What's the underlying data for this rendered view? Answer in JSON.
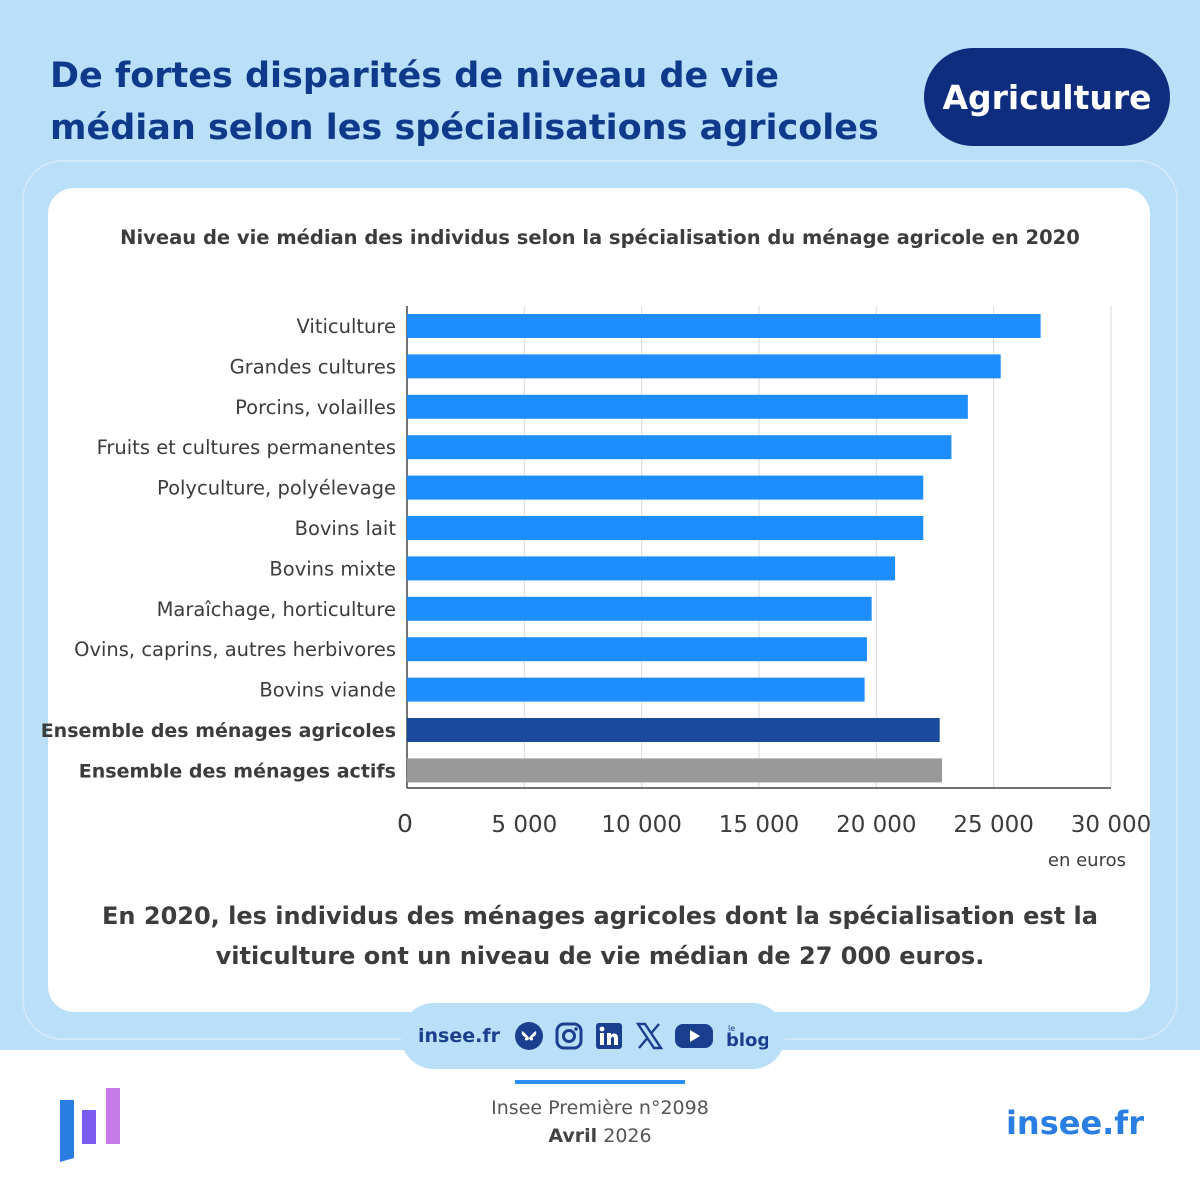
{
  "header": {
    "title": "De fortes disparités de niveau de vie médian selon les spécialisations agricoles",
    "tag": "Agriculture"
  },
  "chart_data": {
    "type": "bar",
    "orientation": "horizontal",
    "title": "Niveau de vie médian des individus selon la spécialisation du ménage agricole en 2020",
    "categories": [
      "Viticulture",
      "Grandes cultures",
      "Porcins, volailles",
      "Fruits et cultures permanentes",
      "Polyculture, polyélevage",
      "Bovins lait",
      "Bovins mixte",
      "Maraîchage, horticulture",
      "Ovins, caprins, autres herbivores",
      "Bovins viande",
      "Ensemble des ménages agricoles",
      "Ensemble des ménages actifs"
    ],
    "values": [
      27000,
      25300,
      23900,
      23200,
      22000,
      22000,
      20800,
      19800,
      19600,
      19500,
      22700,
      22800
    ],
    "bold_categories": [
      "Ensemble des ménages agricoles",
      "Ensemble des ménages actifs"
    ],
    "colors": {
      "default": "#1e8eff",
      "Ensemble des ménages agricoles": "#1a4a9c",
      "Ensemble des ménages actifs": "#999999"
    },
    "xlim": [
      0,
      30000
    ],
    "xticks": [
      0,
      5000,
      10000,
      15000,
      20000,
      25000,
      30000
    ],
    "xtick_labels": [
      "0",
      "5 000",
      "10 000",
      "15 000",
      "20 000",
      "25 000",
      "30 000"
    ],
    "unit": "en euros",
    "grid": "vertical"
  },
  "caption": "En 2020, les individus des ménages agricoles dont la spécialisation est la viticulture ont un niveau de vie médian de 27 000 euros.",
  "social": {
    "site": "insee.fr",
    "icons": [
      "bluesky-icon",
      "instagram-icon",
      "linkedin-icon",
      "x-icon",
      "youtube-icon",
      "blog-icon"
    ],
    "blog_small": "le",
    "blog_label": "blog"
  },
  "footer": {
    "publication": "Insee Première n°2098",
    "month": "Avril",
    "year": "2026",
    "site": "insee.fr"
  }
}
